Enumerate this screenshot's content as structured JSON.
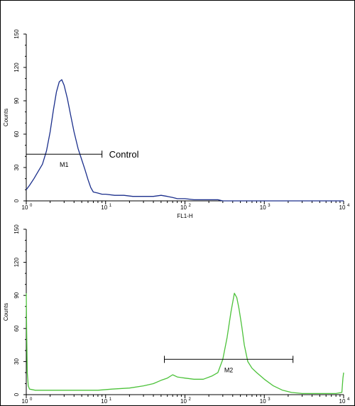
{
  "chart_data": [
    {
      "type": "line",
      "title": "",
      "xlabel": "FL1-H",
      "ylabel": "Counts",
      "xscale": "log",
      "xlim": [
        1,
        10000
      ],
      "ylim": [
        0,
        150
      ],
      "x_ticks": [
        {
          "base": "10",
          "exp": "0"
        },
        {
          "base": "10",
          "exp": "1"
        },
        {
          "base": "10",
          "exp": "2"
        },
        {
          "base": "10",
          "exp": "3"
        },
        {
          "base": "10",
          "exp": "4"
        }
      ],
      "y_ticks": [
        "0",
        "30",
        "60",
        "90",
        "120",
        "150"
      ],
      "series": [
        {
          "color": "#1b2f8c",
          "x": [
            1.0,
            1.1,
            1.25,
            1.4,
            1.6,
            1.8,
            2.0,
            2.2,
            2.4,
            2.6,
            2.8,
            3.0,
            3.3,
            3.6,
            4.0,
            4.5,
            5.0,
            5.5,
            6.0,
            6.5,
            7.0,
            8.0,
            9.0,
            10,
            13,
            17,
            22,
            30,
            40,
            50,
            60,
            70,
            80,
            100,
            130,
            170,
            220,
            260,
            300,
            1000,
            10000
          ],
          "y": [
            10,
            14,
            20,
            26,
            33,
            45,
            62,
            82,
            98,
            107,
            109,
            104,
            92,
            78,
            62,
            47,
            37,
            28,
            19,
            12,
            8,
            7,
            6,
            6,
            5,
            5,
            4,
            4,
            4,
            5,
            4,
            3,
            2,
            2,
            1,
            1,
            1,
            1,
            0,
            0,
            0
          ]
        }
      ],
      "gates": [
        {
          "label": "M1",
          "x_start": 1.0,
          "x_end": 9.0,
          "y": 42
        }
      ],
      "annotation": "Control"
    },
    {
      "type": "line",
      "title": "",
      "xlabel": "",
      "ylabel": "Counts",
      "xscale": "log",
      "xlim": [
        1,
        10000
      ],
      "ylim": [
        0,
        150
      ],
      "x_ticks": [
        {
          "base": "10",
          "exp": "0"
        },
        {
          "base": "10",
          "exp": "1"
        },
        {
          "base": "10",
          "exp": "2"
        },
        {
          "base": "10",
          "exp": "3"
        },
        {
          "base": "10",
          "exp": "4"
        }
      ],
      "y_ticks": [
        "0",
        "30",
        "60",
        "90",
        "120",
        "150"
      ],
      "series": [
        {
          "color": "#4cc23a",
          "x": [
            1.0,
            1.01,
            1.03,
            1.06,
            1.1,
            1.3,
            1.6,
            2,
            3,
            5,
            8,
            12,
            20,
            30,
            40,
            50,
            60,
            70,
            80,
            100,
            130,
            170,
            220,
            260,
            300,
            340,
            380,
            420,
            450,
            480,
            520,
            560,
            620,
            700,
            800,
            1000,
            1300,
            1700,
            2200,
            3000,
            5000,
            8000,
            9500,
            9800,
            10000
          ],
          "y": [
            92,
            60,
            20,
            8,
            5,
            4,
            4,
            4,
            4,
            4,
            4,
            5,
            6,
            8,
            10,
            13,
            15,
            18,
            16,
            15,
            14,
            14,
            17,
            20,
            32,
            52,
            75,
            92,
            88,
            78,
            62,
            45,
            30,
            24,
            20,
            14,
            8,
            4,
            2,
            1,
            1,
            1,
            2,
            15,
            20
          ]
        }
      ],
      "gates": [
        {
          "label": "M2",
          "x_start": 55,
          "x_end": 2300,
          "y": 32
        }
      ],
      "annotation": ""
    }
  ]
}
